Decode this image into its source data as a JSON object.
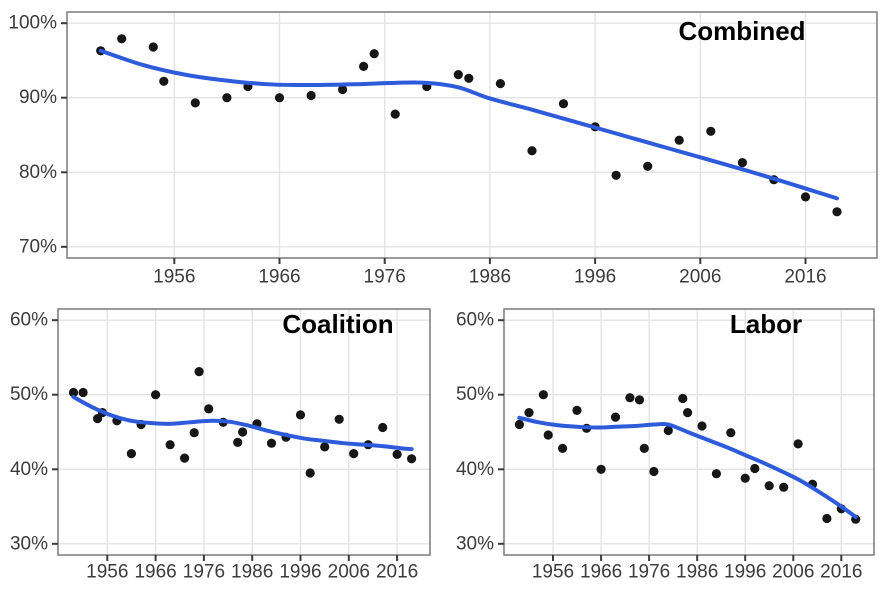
{
  "figure": {
    "background": "#ffffff",
    "style": {
      "point_color": "#161616",
      "trend_color": "#2d5bd9",
      "grid_color": "#e4e4e4",
      "border_color": "#828282",
      "tick_color": "#3a3a3a",
      "tick_label_color": "#3c3c3c",
      "title_color": "#000000"
    }
  },
  "chart_data": [
    {
      "type": "scatter",
      "title": "Combined",
      "xlabel": "",
      "ylabel": "",
      "x": [
        1949,
        1951,
        1954,
        1955,
        1958,
        1961,
        1963,
        1966,
        1969,
        1972,
        1974,
        1975,
        1977,
        1980,
        1983,
        1984,
        1987,
        1990,
        1993,
        1996,
        1998,
        2001,
        2004,
        2007,
        2010,
        2013,
        2016,
        2019
      ],
      "y": [
        96.3,
        97.9,
        96.8,
        92.2,
        89.3,
        90.0,
        91.5,
        90.0,
        90.3,
        91.1,
        94.2,
        95.9,
        87.8,
        91.5,
        93.1,
        92.6,
        91.9,
        82.9,
        89.2,
        86.1,
        79.6,
        80.8,
        84.3,
        85.5,
        81.3,
        79.0,
        76.7,
        74.7
      ],
      "trend": {
        "x": [
          1949,
          1953,
          1957,
          1961,
          1965,
          1969,
          1973,
          1977,
          1980,
          1983,
          1986,
          1990,
          1994,
          1998,
          2002,
          2006,
          2010,
          2014,
          2019
        ],
        "y": [
          96.3,
          94.4,
          93.1,
          92.3,
          91.8,
          91.7,
          91.8,
          92.0,
          92.0,
          91.4,
          89.9,
          88.4,
          86.8,
          85.2,
          83.6,
          82.0,
          80.4,
          78.7,
          76.5
        ]
      },
      "xlim": [
        1945.8,
        2022.8
      ],
      "ylim": [
        68.5,
        101.5
      ],
      "xticks": {
        "values": [
          1956,
          1966,
          1976,
          1986,
          1996,
          2006,
          2016
        ],
        "labels": [
          "1956",
          "1966",
          "1976",
          "1986",
          "1996",
          "2006",
          "2016"
        ]
      },
      "yticks": {
        "values": [
          100,
          90,
          80,
          70
        ],
        "labels": [
          "100%",
          "90%",
          "80%",
          "70%"
        ]
      },
      "grid": "major",
      "legend": "none"
    },
    {
      "type": "scatter",
      "title": "Coalition",
      "xlabel": "",
      "ylabel": "",
      "x": [
        1949,
        1951,
        1954,
        1955,
        1958,
        1961,
        1963,
        1966,
        1969,
        1972,
        1974,
        1975,
        1977,
        1980,
        1983,
        1984,
        1987,
        1990,
        1993,
        1996,
        1998,
        2001,
        2004,
        2007,
        2010,
        2013,
        2016,
        2019
      ],
      "y": [
        50.3,
        50.3,
        46.8,
        47.6,
        46.5,
        42.1,
        46.0,
        50.0,
        43.3,
        41.5,
        44.9,
        53.1,
        48.1,
        46.3,
        43.6,
        45.0,
        46.1,
        43.5,
        44.3,
        47.3,
        39.5,
        43.0,
        46.7,
        42.1,
        43.3,
        45.6,
        42.0,
        41.4
      ],
      "trend": {
        "x": [
          1949,
          1953,
          1957,
          1961,
          1965,
          1969,
          1973,
          1977,
          1981,
          1985,
          1989,
          1993,
          1997,
          2001,
          2005,
          2009,
          2013,
          2017,
          2019
        ],
        "y": [
          49.7,
          48.3,
          47.2,
          46.5,
          46.2,
          46.1,
          46.3,
          46.5,
          46.4,
          45.9,
          45.2,
          44.6,
          44.1,
          43.8,
          43.5,
          43.3,
          43.1,
          42.8,
          42.7
        ]
      },
      "xlim": [
        1945.8,
        2022.8
      ],
      "ylim": [
        28.5,
        61.5
      ],
      "xticks": {
        "values": [
          1956,
          1966,
          1976,
          1986,
          1996,
          2006,
          2016
        ],
        "labels": [
          "1956",
          "1966",
          "1976",
          "1986",
          "1996",
          "2006",
          "2016"
        ]
      },
      "yticks": {
        "values": [
          60,
          50,
          40,
          30
        ],
        "labels": [
          "60%",
          "50%",
          "40%",
          "30%"
        ]
      },
      "grid": "major",
      "legend": "none"
    },
    {
      "type": "scatter",
      "title": "Labor",
      "xlabel": "",
      "ylabel": "",
      "x": [
        1949,
        1951,
        1954,
        1955,
        1958,
        1961,
        1963,
        1966,
        1969,
        1972,
        1974,
        1975,
        1977,
        1980,
        1983,
        1984,
        1987,
        1990,
        1993,
        1996,
        1998,
        2001,
        2004,
        2007,
        2010,
        2013,
        2016,
        2019
      ],
      "y": [
        46.0,
        47.6,
        50.0,
        44.6,
        42.8,
        47.9,
        45.5,
        40.0,
        47.0,
        49.6,
        49.3,
        42.8,
        39.7,
        45.2,
        49.5,
        47.6,
        45.8,
        39.4,
        44.9,
        38.8,
        40.1,
        37.8,
        37.6,
        43.4,
        38.0,
        33.4,
        34.7,
        33.3
      ],
      "trend": {
        "x": [
          1949,
          1953,
          1957,
          1961,
          1965,
          1969,
          1973,
          1977,
          1980,
          1984,
          1988,
          1992,
          1996,
          2000,
          2004,
          2008,
          2012,
          2016,
          2019
        ],
        "y": [
          46.9,
          46.3,
          45.9,
          45.7,
          45.6,
          45.7,
          45.8,
          46.0,
          46.0,
          45.0,
          44.0,
          43.0,
          41.9,
          40.8,
          39.6,
          38.3,
          36.7,
          35.0,
          33.6
        ]
      },
      "xlim": [
        1945.8,
        2022.8
      ],
      "ylim": [
        28.5,
        61.5
      ],
      "xticks": {
        "values": [
          1956,
          1966,
          1976,
          1986,
          1996,
          2006,
          2016
        ],
        "labels": [
          "1956",
          "1966",
          "1976",
          "1986",
          "1996",
          "2006",
          "2016"
        ]
      },
      "yticks": {
        "values": [
          60,
          50,
          40,
          30
        ],
        "labels": [
          "60%",
          "50%",
          "40%",
          "30%"
        ]
      },
      "grid": "major",
      "legend": "none"
    }
  ]
}
